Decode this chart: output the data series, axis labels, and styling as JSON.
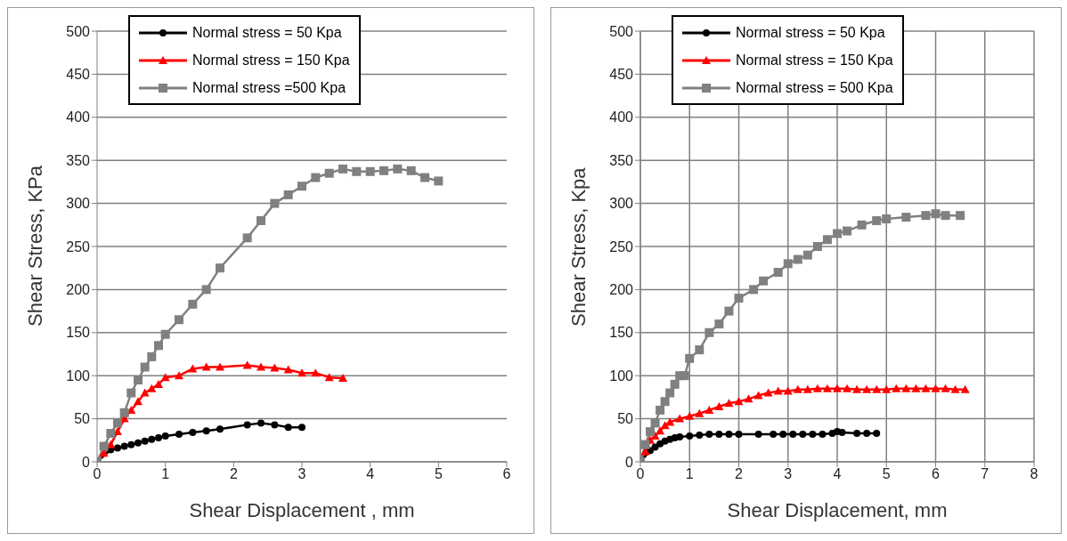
{
  "chart_data": [
    {
      "type": "line",
      "xlabel": "Shear Displacement , mm",
      "ylabel": "Shear Stress, KPa",
      "xlim": [
        0,
        6
      ],
      "xticks": [
        0,
        1,
        2,
        3,
        4,
        5,
        6
      ],
      "ylim": [
        0,
        500
      ],
      "yticks": [
        0,
        50,
        100,
        150,
        200,
        250,
        300,
        350,
        400,
        450,
        500
      ],
      "grid": "y",
      "legend": "top left",
      "series": [
        {
          "name": "Normal stress = 50 Kpa",
          "color": "#000000",
          "marker": "circle",
          "x": [
            0,
            0.1,
            0.2,
            0.3,
            0.4,
            0.5,
            0.6,
            0.7,
            0.8,
            0.9,
            1.0,
            1.2,
            1.4,
            1.6,
            1.8,
            2.2,
            2.4,
            2.6,
            2.8,
            3.0
          ],
          "values": [
            0,
            null,
            14,
            16,
            18,
            20,
            22,
            24,
            26,
            28,
            30,
            32,
            34,
            36,
            38,
            43,
            45,
            43,
            40,
            40
          ]
        },
        {
          "name": "Normal stress = 150 Kpa",
          "color": "#ff0000",
          "marker": "triangle",
          "x": [
            0,
            0.1,
            0.2,
            0.3,
            0.4,
            0.5,
            0.6,
            0.7,
            0.8,
            0.9,
            1.0,
            1.2,
            1.4,
            1.6,
            1.8,
            2.2,
            2.4,
            2.6,
            2.8,
            3.0,
            3.2,
            3.4,
            3.6
          ],
          "values": [
            0,
            10,
            20,
            35,
            50,
            60,
            70,
            80,
            85,
            90,
            98,
            100,
            108,
            110,
            110,
            112,
            110,
            109,
            107,
            103,
            103,
            98,
            97
          ]
        },
        {
          "name": "Normal stress =500 Kpa",
          "color": "#808080",
          "marker": "square",
          "x": [
            0,
            0.1,
            0.2,
            0.3,
            0.4,
            0.5,
            0.6,
            0.7,
            0.8,
            0.9,
            1.0,
            1.2,
            1.4,
            1.6,
            1.8,
            2.2,
            2.4,
            2.6,
            2.8,
            3.0,
            3.2,
            3.4,
            3.6,
            3.8,
            4.0,
            4.2,
            4.4,
            4.6,
            4.8,
            5.0
          ],
          "values": [
            0,
            18,
            33,
            45,
            57,
            80,
            95,
            110,
            122,
            135,
            148,
            165,
            183,
            200,
            225,
            260,
            280,
            300,
            310,
            320,
            330,
            335,
            340,
            337,
            337,
            338,
            340,
            338,
            330,
            326
          ]
        }
      ]
    },
    {
      "type": "line",
      "xlabel": "Shear Displacement, mm",
      "ylabel": "Shear Stress, Kpa",
      "xlim": [
        0,
        8
      ],
      "xticks": [
        0,
        1,
        2,
        3,
        4,
        5,
        6,
        7,
        8
      ],
      "ylim": [
        0,
        500
      ],
      "yticks": [
        0,
        50,
        100,
        150,
        200,
        250,
        300,
        350,
        400,
        450,
        500
      ],
      "grid": true,
      "legend": "top left",
      "series": [
        {
          "name": "Normal stress = 50 Kpa",
          "color": "#000000",
          "marker": "circle",
          "x": [
            0,
            0.1,
            0.2,
            0.3,
            0.4,
            0.5,
            0.6,
            0.7,
            0.8,
            1.0,
            1.2,
            1.4,
            1.6,
            1.8,
            2.0,
            2.4,
            2.7,
            2.9,
            3.1,
            3.3,
            3.5,
            3.7,
            3.9,
            4.0,
            4.1,
            4.4,
            4.6,
            4.8
          ],
          "values": [
            0,
            null,
            13,
            17,
            21,
            24,
            26,
            28,
            29,
            30,
            31,
            32,
            32,
            32,
            32,
            32,
            32,
            32,
            32,
            32,
            32,
            32,
            33,
            35,
            34,
            33,
            33,
            33
          ]
        },
        {
          "name": "Normal stress = 150 Kpa",
          "color": "#ff0000",
          "marker": "triangle",
          "x": [
            0,
            0.1,
            0.2,
            0.3,
            0.4,
            0.5,
            0.6,
            0.8,
            1.0,
            1.2,
            1.4,
            1.6,
            1.8,
            2.0,
            2.2,
            2.4,
            2.6,
            2.8,
            3.0,
            3.2,
            3.4,
            3.6,
            3.8,
            4.0,
            4.2,
            4.4,
            4.6,
            4.8,
            5.0,
            5.2,
            5.4,
            5.6,
            5.8,
            6.0,
            6.2,
            6.4,
            6.6
          ],
          "values": [
            0,
            12,
            25,
            30,
            36,
            42,
            46,
            50,
            53,
            56,
            60,
            64,
            68,
            70,
            73,
            77,
            80,
            82,
            82,
            84,
            84,
            85,
            85,
            85,
            85,
            84,
            84,
            84,
            84,
            85,
            85,
            85,
            85,
            85,
            85,
            84,
            84
          ]
        },
        {
          "name": "Normal stress = 500 Kpa",
          "color": "#808080",
          "marker": "square",
          "x": [
            0,
            0.1,
            0.2,
            0.3,
            0.4,
            0.5,
            0.6,
            0.7,
            0.8,
            0.9,
            1.0,
            1.2,
            1.4,
            1.6,
            1.8,
            2.0,
            2.3,
            2.5,
            2.8,
            3.0,
            3.2,
            3.4,
            3.6,
            3.8,
            4.0,
            4.2,
            4.5,
            4.8,
            5.0,
            5.4,
            5.8,
            6.0,
            6.2,
            6.5
          ],
          "values": [
            0,
            20,
            35,
            45,
            60,
            70,
            80,
            90,
            100,
            100,
            120,
            130,
            150,
            160,
            175,
            190,
            200,
            210,
            220,
            230,
            235,
            240,
            250,
            258,
            265,
            268,
            275,
            280,
            282,
            284,
            286,
            288,
            286,
            286
          ]
        }
      ]
    }
  ]
}
